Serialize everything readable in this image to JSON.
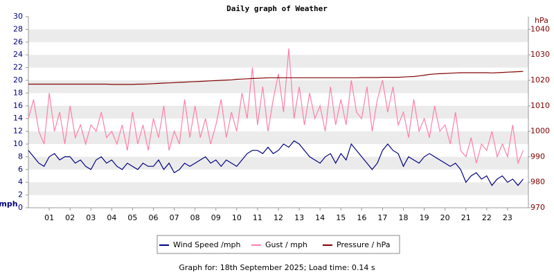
{
  "chart_data": {
    "type": "line",
    "title": "Daily graph of Weather",
    "y_label": "mph",
    "y2_label": "hPa",
    "footer": "Graph for: 18th September 2025; Load time: 0.14 s",
    "xlim": [
      0,
      24
    ],
    "xticks": [
      {
        "value": 1,
        "label": "01"
      },
      {
        "value": 2,
        "label": "02"
      },
      {
        "value": 3,
        "label": "03"
      },
      {
        "value": 4,
        "label": "04"
      },
      {
        "value": 5,
        "label": "05"
      },
      {
        "value": 6,
        "label": "06"
      },
      {
        "value": 7,
        "label": "07"
      },
      {
        "value": 8,
        "label": "08"
      },
      {
        "value": 9,
        "label": "09"
      },
      10,
      11,
      12,
      13,
      14,
      15,
      16,
      17,
      18,
      19,
      20,
      21,
      22,
      23
    ],
    "ylim": [
      0,
      30
    ],
    "yticks": [
      0,
      2,
      4,
      6,
      8,
      10,
      12,
      14,
      16,
      18,
      20,
      22,
      24,
      26,
      28,
      30
    ],
    "y2lim": [
      970,
      1045
    ],
    "y2ticks": [
      970,
      980,
      990,
      1000,
      1010,
      1020,
      1030,
      1040
    ],
    "grid": true,
    "x": [
      0,
      0.25,
      0.5,
      0.75,
      1,
      1.25,
      1.5,
      1.75,
      2,
      2.25,
      2.5,
      2.75,
      3,
      3.25,
      3.5,
      3.75,
      4,
      4.25,
      4.5,
      4.75,
      5,
      5.25,
      5.5,
      5.75,
      6,
      6.25,
      6.5,
      6.75,
      7,
      7.25,
      7.5,
      7.75,
      8,
      8.25,
      8.5,
      8.75,
      9,
      9.25,
      9.5,
      9.75,
      10,
      10.25,
      10.5,
      10.75,
      11,
      11.25,
      11.5,
      11.75,
      12,
      12.25,
      12.5,
      12.75,
      13,
      13.25,
      13.5,
      13.75,
      14,
      14.25,
      14.5,
      14.75,
      15,
      15.25,
      15.5,
      15.75,
      16,
      16.25,
      16.5,
      16.75,
      17,
      17.25,
      17.5,
      17.75,
      18,
      18.25,
      18.5,
      18.75,
      19,
      19.25,
      19.5,
      19.75,
      20,
      20.25,
      20.5,
      20.75,
      21,
      21.25,
      21.5,
      21.75,
      22,
      22.25,
      22.5,
      22.75,
      23,
      23.25,
      23.5,
      23.75
    ],
    "series": [
      {
        "name": "Wind Speed /mph",
        "color": "#000080",
        "values": [
          9,
          8,
          7,
          6.5,
          8,
          8.5,
          7.5,
          8,
          8,
          7,
          7.5,
          6.5,
          6,
          7.5,
          8,
          7,
          7.5,
          6.5,
          6,
          7,
          6.5,
          6,
          7,
          6.5,
          6.5,
          7.5,
          6,
          7,
          5.5,
          6,
          7,
          6.5,
          7,
          7.5,
          8,
          7,
          7.5,
          6.5,
          7.5,
          7,
          6.5,
          7.5,
          8.5,
          9,
          9,
          8.5,
          9.5,
          8.5,
          9,
          10,
          9.5,
          10.5,
          10,
          9,
          8,
          7.5,
          7,
          8,
          8.5,
          7,
          8.5,
          7.5,
          10,
          9,
          8,
          7,
          6,
          7,
          9,
          10,
          9,
          8.5,
          6.5,
          8,
          7.5,
          7,
          8,
          8.5,
          8,
          7.5,
          7,
          6.5,
          7,
          6,
          4,
          5,
          5.5,
          4.5,
          5,
          3.5,
          4.5,
          5,
          4,
          4.5,
          3.5,
          4.5
        ]
      },
      {
        "name": "Gust / mph",
        "color": "#ff7fa6",
        "values": [
          14,
          17,
          12,
          10,
          18,
          12,
          15,
          10,
          16,
          11,
          13,
          10,
          13,
          12,
          15,
          11,
          12,
          10,
          13,
          9,
          15,
          10,
          13,
          9,
          14,
          11,
          16,
          9,
          12,
          10,
          17,
          11,
          16,
          11,
          14,
          10,
          13,
          17,
          11,
          15,
          12,
          18,
          14,
          22,
          13,
          19,
          12,
          17,
          21,
          15,
          25,
          14,
          19,
          13,
          18,
          14,
          16,
          12,
          19,
          13,
          17,
          13,
          20,
          15,
          14,
          19,
          12,
          17,
          20,
          15,
          19,
          13,
          15,
          11,
          17,
          12,
          14,
          11,
          16,
          12,
          13,
          10,
          15,
          9,
          8,
          11,
          7,
          10,
          9,
          12,
          8,
          10,
          8,
          13,
          7,
          9
        ]
      },
      {
        "name": "Pressure / hPa",
        "color": "#800000",
        "axis": "y2",
        "values": [
          1018.5,
          1018.5,
          1018.5,
          1018.5,
          1018.5,
          1018.5,
          1018.5,
          1018.5,
          1018.5,
          1018.5,
          1018.5,
          1018.5,
          1018.5,
          1018.5,
          1018.5,
          1018.5,
          1018.4,
          1018.4,
          1018.4,
          1018.4,
          1018.4,
          1018.5,
          1018.5,
          1018.6,
          1018.7,
          1018.8,
          1018.9,
          1019,
          1019.1,
          1019.2,
          1019.3,
          1019.4,
          1019.5,
          1019.6,
          1019.7,
          1019.8,
          1019.9,
          1020,
          1020.1,
          1020.2,
          1020.4,
          1020.5,
          1020.6,
          1020.7,
          1020.8,
          1020.9,
          1021,
          1021,
          1021,
          1021,
          1021,
          1021,
          1021,
          1021,
          1021,
          1021,
          1021,
          1021,
          1021,
          1021,
          1021,
          1021,
          1021,
          1021,
          1021.1,
          1021.1,
          1021.1,
          1021.1,
          1021.2,
          1021.2,
          1021.2,
          1021.2,
          1021.3,
          1021.4,
          1021.5,
          1021.7,
          1022,
          1022.3,
          1022.5,
          1022.6,
          1022.7,
          1022.8,
          1022.9,
          1023,
          1023,
          1023,
          1023,
          1023,
          1023,
          1022.9,
          1023,
          1023.1,
          1023.2,
          1023.3,
          1023.4,
          1023.5
        ]
      }
    ]
  }
}
